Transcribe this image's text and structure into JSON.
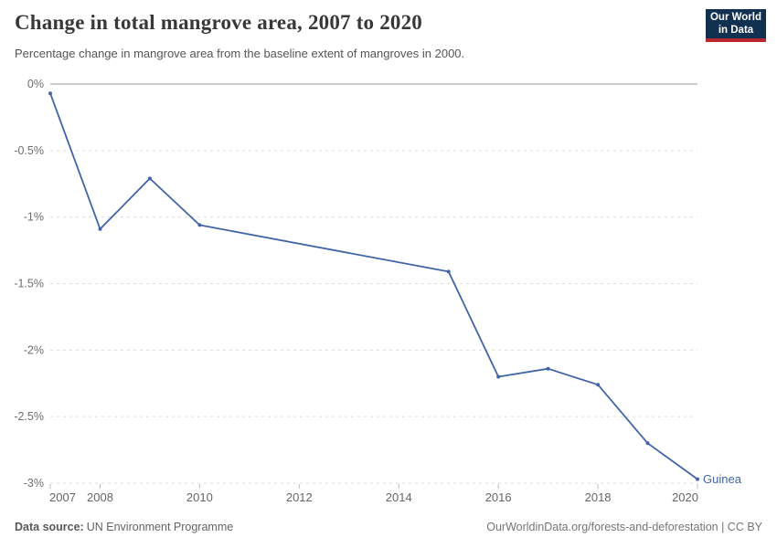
{
  "header": {
    "title": "Change in total mangrove area, 2007 to 2020",
    "subtitle": "Percentage change in mangrove area from the baseline extent of mangroves in 2000.",
    "logo": {
      "line1": "Our World",
      "line2": "in Data",
      "bg_color": "#12304f",
      "accent_color": "#b9262f"
    }
  },
  "footer": {
    "source_label": "Data source:",
    "source_value": "UN Environment Programme",
    "attribution": "OurWorldinData.org/forests-and-deforestation | CC BY"
  },
  "chart_data": {
    "type": "line",
    "title": "Change in total mangrove area, 2007 to 2020",
    "subtitle": "Percentage change in mangrove area from the baseline extent of mangroves in 2000.",
    "xlim": [
      2007,
      2020
    ],
    "ylim": [
      -3,
      0
    ],
    "x_ticks": [
      2007,
      2008,
      2010,
      2012,
      2014,
      2016,
      2018,
      2020
    ],
    "y_ticks": [
      0,
      -0.5,
      -1,
      -1.5,
      -2,
      -2.5,
      -3
    ],
    "y_tick_labels": [
      "0%",
      "-0.5%",
      "-1%",
      "-1.5%",
      "-2%",
      "-2.5%",
      "-3%"
    ],
    "grid": "horizontal-dashed, zero-line solid, no legend",
    "colors": {
      "zero_line": "#bdbdbd",
      "gridline": "#dcdcdc",
      "tick": "#bdbdbd"
    },
    "series": [
      {
        "name": "Guinea",
        "end_label": "Guinea",
        "color": "#4064a6",
        "x": [
          2007,
          2008,
          2009,
          2010,
          2015,
          2016,
          2017,
          2018,
          2019,
          2020
        ],
        "values": [
          -0.07,
          -1.09,
          -0.71,
          -1.06,
          -1.41,
          -2.2,
          -2.14,
          -2.26,
          -2.7,
          -2.97
        ]
      }
    ]
  }
}
